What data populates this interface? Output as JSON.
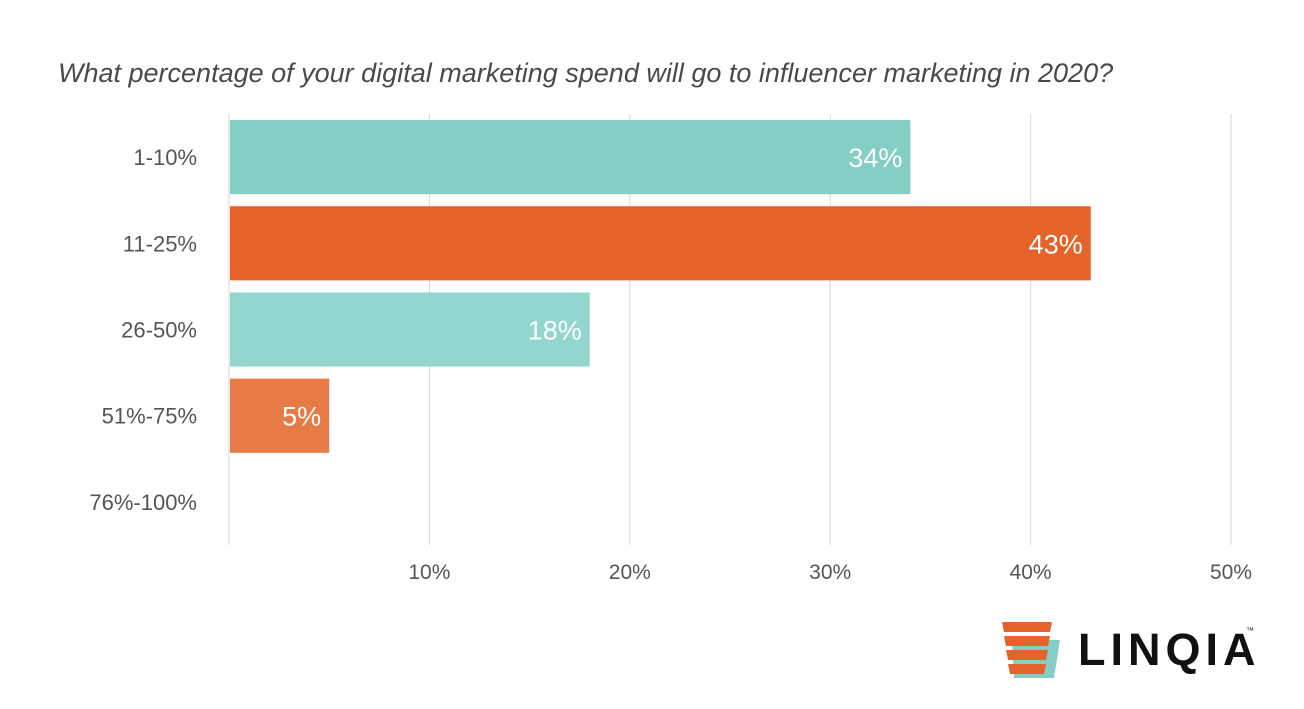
{
  "chart_data": {
    "type": "bar",
    "orientation": "horizontal",
    "title": "What percentage of your digital marketing spend will go to influencer marketing in 2020?",
    "categories": [
      "1-10%",
      "11-25%",
      "26-50%",
      "51%-75%",
      "76%-100%"
    ],
    "values": [
      34,
      43,
      18,
      5,
      0
    ],
    "data_labels": [
      "34%",
      "43%",
      "18%",
      "5%",
      ""
    ],
    "bar_colors": [
      "#84cec6",
      "#e5632a",
      "#92d6cf",
      "#e87b45",
      "#84cec6"
    ],
    "xlim": [
      0,
      50
    ],
    "x_ticks": [
      10,
      20,
      30,
      40,
      50
    ],
    "x_tick_labels": [
      "10%",
      "20%",
      "30%",
      "40%",
      "50%"
    ],
    "grid": true,
    "legend": "none"
  },
  "colors": {
    "teal": "#84cec6",
    "orange": "#e5632a",
    "grid": "#d6d6d6",
    "axis_text": "#555555",
    "title_text": "#4a4a4a"
  },
  "logo": {
    "text": "LINQIA",
    "tm": "™"
  }
}
